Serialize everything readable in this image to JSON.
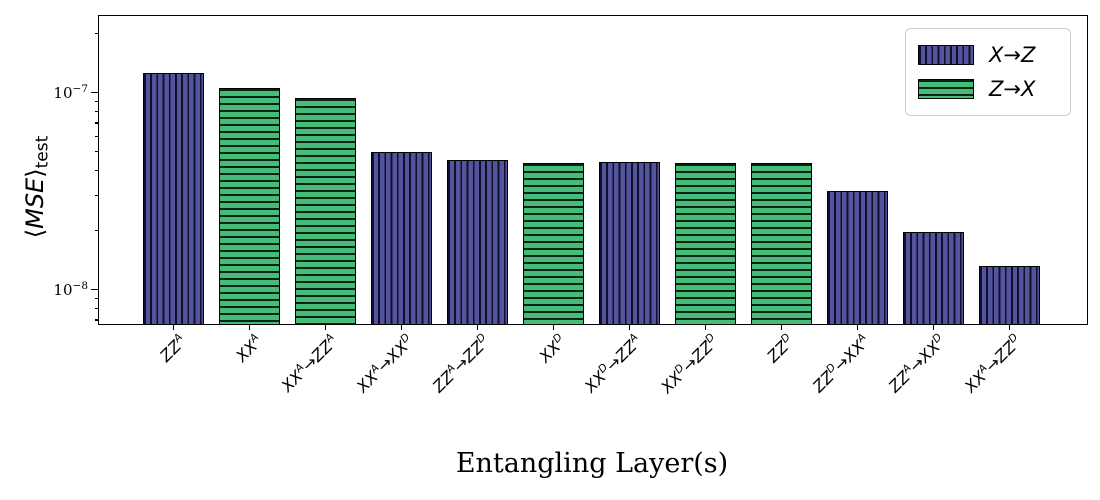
{
  "chart_data": {
    "type": "bar",
    "title": "",
    "xlabel": "Entangling Layer(s)",
    "ylabel": "⟨MSE⟩_test",
    "ylabel_parts": {
      "open": "⟨",
      "main": "MSE",
      "close": "⟩",
      "sub": "test"
    },
    "yscale": "log",
    "ylim": [
      6.6e-09,
      2.5e-07
    ],
    "grid": false,
    "legend_position": "upper right",
    "categories": [
      "ZZ^A",
      "XX^A",
      "XX^A→ZZ^A",
      "XX^A→XX^D",
      "ZZ^A→ZZ^D",
      "XX^D",
      "XX^D→ZZ^A",
      "XX^D→ZZ^D",
      "ZZ^D",
      "ZZ^D→XX^A",
      "ZZ^A→XX^D",
      "XX^A→ZZ^D"
    ],
    "values": [
      1.26e-07,
      1.05e-07,
      9.4e-08,
      5e-08,
      4.55e-08,
      4.4e-08,
      4.45e-08,
      4.4e-08,
      4.4e-08,
      3.15e-08,
      1.95e-08,
      1.32e-08
    ],
    "bar_series": [
      "X→Z",
      "Z→X",
      "Z→X",
      "X→Z",
      "X→Z",
      "Z→X",
      "X→Z",
      "Z→X",
      "Z→X",
      "X→Z",
      "X→Z",
      "X→Z"
    ],
    "series_styles": [
      {
        "name": "X→Z",
        "fill": "#54549c",
        "hatch": "|",
        "hatch_color": "#10102c"
      },
      {
        "name": "Z→X",
        "fill": "#45bd78",
        "hatch": "-",
        "hatch_color": "#0c2416"
      }
    ],
    "yticks": [
      {
        "base": "10",
        "exp": "−7",
        "value": 1e-07
      },
      {
        "base": "10",
        "exp": "−8",
        "value": 1e-08
      }
    ]
  }
}
